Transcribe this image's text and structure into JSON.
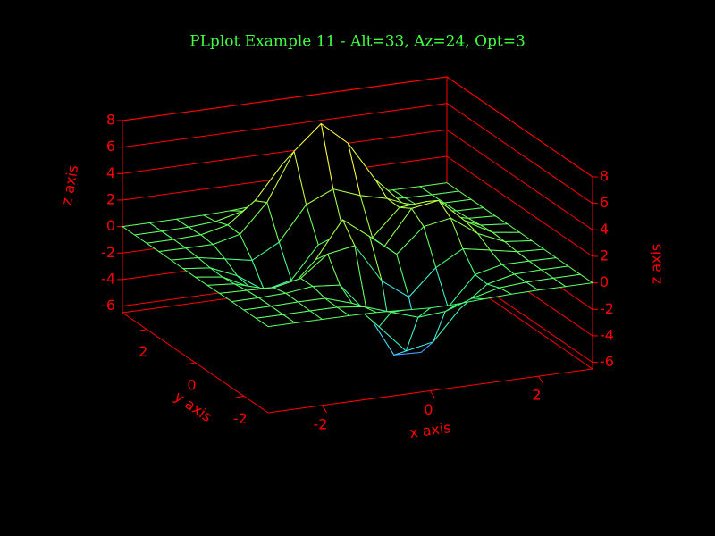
{
  "chart_data": {
    "type": "surface3d",
    "title": "PLplot Example 11 - Alt=33, Az=24, Opt=3",
    "title_color": "#40ff40",
    "axis_color": "#ff0000",
    "xlabel": "x axis",
    "ylabel": "y axis",
    "zlabel": "z axis",
    "x": [
      -3,
      -2.5,
      -2,
      -1.5,
      -1,
      -0.5,
      0,
      0.5,
      1,
      1.5,
      2,
      2.5,
      3
    ],
    "y": [
      -3,
      -2.5,
      -2,
      -1.5,
      -1,
      -0.5,
      0,
      0.5,
      1,
      1.5,
      2,
      2.5,
      3
    ],
    "z": [
      [
        0,
        0,
        0,
        0,
        -0.03,
        -0.14,
        -0.24,
        -0.22,
        -0.11,
        -0.03,
        0,
        0,
        0
      ],
      [
        0,
        0,
        0.01,
        0,
        -0.23,
        -0.92,
        -1.57,
        -1.41,
        -0.69,
        -0.18,
        -0.03,
        0,
        0
      ],
      [
        0,
        0.01,
        0.05,
        0.05,
        -0.59,
        -2.64,
        -4.75,
        -4.34,
        -2.1,
        -0.53,
        -0.06,
        0,
        0
      ],
      [
        0,
        0.01,
        0.08,
        0.33,
        0.15,
        -2.19,
        -5.68,
        -5.76,
        -2.64,
        -0.44,
        0.04,
        0.03,
        0
      ],
      [
        -0.01,
        -0.06,
        -0.13,
        0.3,
        1.86,
        2.22,
        -0.72,
        -2.22,
        -0.27,
        0.88,
        0.5,
        0.11,
        0.01
      ],
      [
        -0.03,
        -0.2,
        -0.8,
        -1.21,
        0.8,
        3.55,
        2,
        0.39,
        2.2,
        2.56,
        1.12,
        0.24,
        0.03
      ],
      [
        -0.04,
        -0.3,
        -1.33,
        -2.77,
        -1.65,
        1.48,
        0.98,
        0.37,
        2.94,
        3.27,
        1.41,
        0.3,
        0.03
      ],
      [
        -0.03,
        -0.25,
        -1.12,
        -2.49,
        -2,
        0.39,
        0.46,
        0.38,
        2.38,
        2.56,
        1.09,
        0.23,
        0.03
      ],
      [
        -0.01,
        -0.11,
        -0.48,
        -0.86,
        0.23,
        2.79,
        3.69,
        2.93,
        2.43,
        1.58,
        0.58,
        0.11,
        0.01
      ],
      [
        0,
        -0.02,
        -0.01,
        0.48,
        2.61,
        6.2,
        8,
        6.25,
        3.25,
        1.19,
        0.29,
        0.05,
        0
      ],
      [
        0,
        0.01,
        0.08,
        0.55,
        2.1,
        4.55,
        5.85,
        4.56,
        2.21,
        0.68,
        0.13,
        0.02,
        0
      ],
      [
        0,
        0,
        0.03,
        0.19,
        0.69,
        1.47,
        1.88,
        1.47,
        0.7,
        0.2,
        0.04,
        0,
        0
      ],
      [
        0,
        0,
        0.01,
        0.03,
        0.11,
        0.23,
        0.3,
        0.23,
        0.11,
        0.03,
        0.01,
        0,
        0
      ]
    ],
    "colormap": [
      "#5050ff",
      "#40e8ff",
      "#40ff70",
      "#b0ff40",
      "#ffff40",
      "#ff7040"
    ],
    "xlim": [
      -3,
      3
    ],
    "ylim": [
      -3,
      3
    ],
    "zlim": [
      -6.5,
      8
    ],
    "xticks": [
      -2,
      0,
      2
    ],
    "yticks": [
      -2,
      0,
      2
    ],
    "zticks": [
      -6,
      -4,
      -2,
      0,
      2,
      4,
      6,
      8
    ]
  }
}
